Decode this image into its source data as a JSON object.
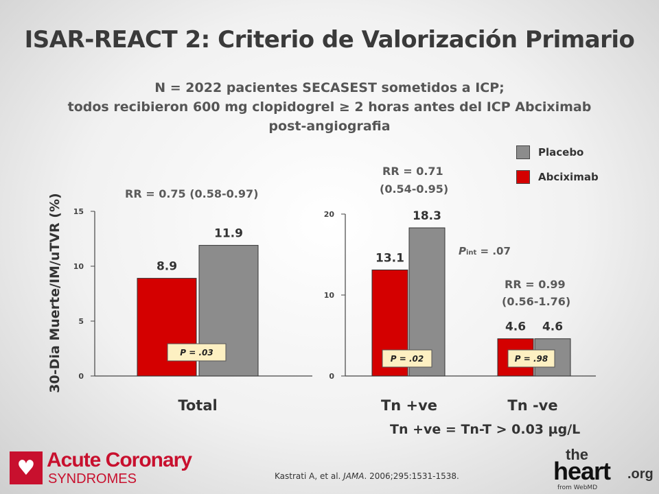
{
  "title": "ISAR-REACT 2: Criterio de Valorización Primario",
  "subtitle": {
    "line1": "N = 2022 pacientes SECASEST sometidos a ICP;",
    "line2": "todos recibieron 600 mg clopidogrel ≥ 2 horas antes del ICP Abciximab",
    "line3": "post-angiografia"
  },
  "legend": {
    "placebo": "Placebo",
    "abciximab": "Abciximab"
  },
  "colors": {
    "placebo": "#8c8c8c",
    "abciximab": "#d40000",
    "pbox": "#fdf0c2"
  },
  "annotations": {
    "rr_total": "RR = 0.75 (0.58-0.97)",
    "rr_tnpos_1": "RR = 0.71",
    "rr_tnpos_2": "(0.54-0.95)",
    "rr_tnneg_1": "RR = 0.99",
    "rr_tnneg_2": "(0.56-1.76)",
    "pint_label": "P",
    "pint_sub": "int",
    "pint_value": " = .07",
    "tn_definition": "Tn +ve = Tn-T > 0.03 µg/L"
  },
  "citation": {
    "authors": "Kastrati A, et al. ",
    "journal": "JAMA",
    "rest": ". 2006;295:1531-1538."
  },
  "logos": {
    "acs_line1": "Acute Coronary",
    "acs_line2": "SYNDROMES",
    "heart_the": "the",
    "heart_main": "heart",
    "heart_org": ".org",
    "heart_from": "from WebMD"
  },
  "chart_data": [
    {
      "type": "bar",
      "ylabel": "30-Dia Muerte/IM/uTVR (%)",
      "ylim": [
        0,
        15
      ],
      "yticks": [
        0,
        5,
        10,
        15
      ],
      "categories": [
        "Total"
      ],
      "series": [
        {
          "name": "Abciximab",
          "values": [
            8.9
          ]
        },
        {
          "name": "Placebo",
          "values": [
            11.9
          ]
        }
      ],
      "p_values": [
        "P = .03"
      ]
    },
    {
      "type": "bar",
      "ylim": [
        0,
        20
      ],
      "yticks": [
        0,
        10,
        20
      ],
      "categories": [
        "Tn +ve",
        "Tn -ve"
      ],
      "series": [
        {
          "name": "Abciximab",
          "values": [
            13.1,
            4.6
          ]
        },
        {
          "name": "Placebo",
          "values": [
            18.3,
            4.6
          ]
        }
      ],
      "p_values": [
        "P = .02",
        "P = .98"
      ]
    }
  ]
}
